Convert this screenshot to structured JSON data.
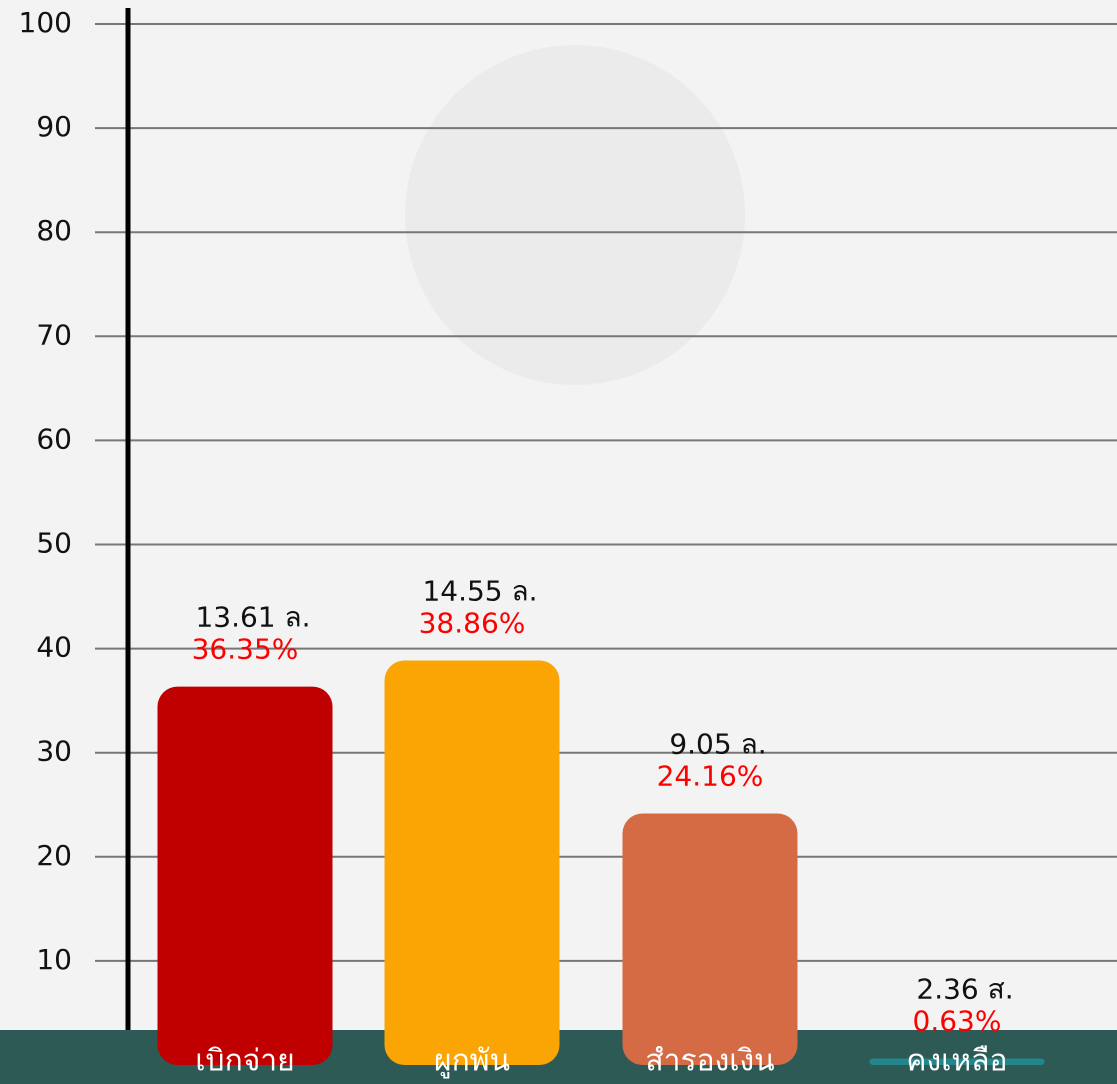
{
  "chart_data": {
    "type": "bar",
    "categories": [
      "เบิกจ่าย",
      "ผูกพัน",
      "สำรองเงิน",
      "คงเหลือ"
    ],
    "values": [
      36.35,
      38.86,
      24.16,
      0.63
    ],
    "value_labels": [
      "36.35%",
      "38.86%",
      "24.16%",
      "0.63%"
    ],
    "amount_labels": [
      "13.61 ล.",
      "14.55 ล.",
      "9.05 ล.",
      "2.36 ส."
    ],
    "colors": [
      "#c00000",
      "#fba504",
      "#d56b45",
      "#23868a"
    ],
    "ylim": [
      0,
      100
    ],
    "yticks": [
      10,
      20,
      30,
      40,
      50,
      60,
      70,
      80,
      90,
      100
    ],
    "grid": true
  }
}
